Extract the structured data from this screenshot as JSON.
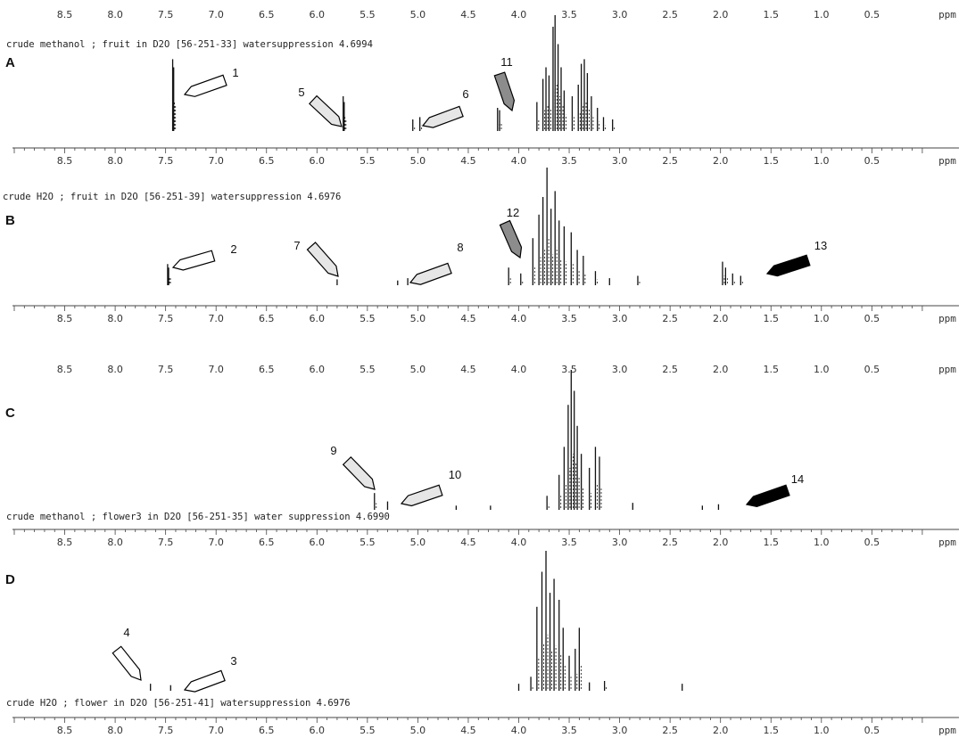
{
  "chart_data": [
    {
      "type": "line",
      "panel": "A",
      "caption": "crude methanol ; fruit in D2O [56-251-33] watersuppression 4.6994",
      "x_unit": "ppm",
      "x_ticks": [
        "8.5",
        "8.0",
        "7.5",
        "7.0",
        "6.5",
        "6.0",
        "5.5",
        "5.0",
        "4.5",
        "4.0",
        "3.5",
        "3.0",
        "2.5",
        "2.0",
        "1.5",
        "1.0",
        "0.5"
      ],
      "xlim": [
        9.0,
        0.0
      ],
      "peaks": [
        {
          "ppm": 7.43,
          "height": 0.62
        },
        {
          "ppm": 7.42,
          "height": 0.55
        },
        {
          "ppm": 5.74,
          "height": 0.3
        },
        {
          "ppm": 5.73,
          "height": 0.25
        },
        {
          "ppm": 5.05,
          "height": 0.1
        },
        {
          "ppm": 4.98,
          "height": 0.12
        },
        {
          "ppm": 4.21,
          "height": 0.2
        },
        {
          "ppm": 4.19,
          "height": 0.18
        },
        {
          "ppm": 3.82,
          "height": 0.25
        },
        {
          "ppm": 3.76,
          "height": 0.45
        },
        {
          "ppm": 3.73,
          "height": 0.55
        },
        {
          "ppm": 3.7,
          "height": 0.48
        },
        {
          "ppm": 3.66,
          "height": 0.9
        },
        {
          "ppm": 3.64,
          "height": 1.0
        },
        {
          "ppm": 3.61,
          "height": 0.75
        },
        {
          "ppm": 3.58,
          "height": 0.55
        },
        {
          "ppm": 3.55,
          "height": 0.35
        },
        {
          "ppm": 3.47,
          "height": 0.3
        },
        {
          "ppm": 3.41,
          "height": 0.4
        },
        {
          "ppm": 3.38,
          "height": 0.58
        },
        {
          "ppm": 3.35,
          "height": 0.62
        },
        {
          "ppm": 3.32,
          "height": 0.5
        },
        {
          "ppm": 3.28,
          "height": 0.3
        },
        {
          "ppm": 3.22,
          "height": 0.2
        },
        {
          "ppm": 3.16,
          "height": 0.12
        },
        {
          "ppm": 3.07,
          "height": 0.1
        }
      ],
      "annotations": [
        {
          "label": "1",
          "style": "white",
          "tip_ppm": 7.32
        },
        {
          "label": "5",
          "style": "light",
          "tip_ppm": 5.85
        },
        {
          "label": "6",
          "style": "light",
          "tip_ppm": 4.98
        },
        {
          "label": "11",
          "style": "dark",
          "tip_ppm": 4.2
        }
      ]
    },
    {
      "type": "line",
      "panel": "B",
      "caption": "crude H2O ; fruit in D2O [56-251-39]  watersuppression 4.6976",
      "x_unit": "ppm",
      "x_ticks": [
        "8.5",
        "8.0",
        "7.5",
        "7.0",
        "6.5",
        "6.0",
        "5.5",
        "5.0",
        "4.5",
        "4.0",
        "3.5",
        "3.0",
        "2.5",
        "2.0",
        "1.5",
        "1.0",
        "0.5"
      ],
      "xlim": [
        9.0,
        0.0
      ],
      "peaks": [
        {
          "ppm": 7.48,
          "height": 0.18
        },
        {
          "ppm": 7.47,
          "height": 0.15
        },
        {
          "ppm": 5.8,
          "height": 0.05
        },
        {
          "ppm": 5.2,
          "height": 0.04
        },
        {
          "ppm": 5.1,
          "height": 0.06
        },
        {
          "ppm": 4.1,
          "height": 0.15
        },
        {
          "ppm": 3.98,
          "height": 0.1
        },
        {
          "ppm": 3.86,
          "height": 0.4
        },
        {
          "ppm": 3.8,
          "height": 0.6
        },
        {
          "ppm": 3.76,
          "height": 0.75
        },
        {
          "ppm": 3.72,
          "height": 1.0
        },
        {
          "ppm": 3.68,
          "height": 0.65
        },
        {
          "ppm": 3.64,
          "height": 0.8
        },
        {
          "ppm": 3.6,
          "height": 0.55
        },
        {
          "ppm": 3.55,
          "height": 0.5
        },
        {
          "ppm": 3.48,
          "height": 0.45
        },
        {
          "ppm": 3.42,
          "height": 0.3
        },
        {
          "ppm": 3.36,
          "height": 0.25
        },
        {
          "ppm": 3.24,
          "height": 0.12
        },
        {
          "ppm": 3.1,
          "height": 0.06
        },
        {
          "ppm": 2.82,
          "height": 0.08
        },
        {
          "ppm": 1.98,
          "height": 0.2
        },
        {
          "ppm": 1.95,
          "height": 0.15
        },
        {
          "ppm": 1.88,
          "height": 0.1
        },
        {
          "ppm": 1.8,
          "height": 0.08
        }
      ],
      "annotations": [
        {
          "label": "2",
          "style": "white",
          "tip_ppm": 7.45
        },
        {
          "label": "7",
          "style": "light",
          "tip_ppm": 5.85
        },
        {
          "label": "8",
          "style": "light",
          "tip_ppm": 5.1
        },
        {
          "label": "12",
          "style": "dark",
          "tip_ppm": 4.1
        },
        {
          "label": "13",
          "style": "black",
          "tip_ppm": 1.65
        }
      ]
    },
    {
      "type": "line",
      "panel": "C",
      "caption": "crude methanol ; flower3 in D2O [56-251-35] water suppression 4.6990",
      "x_unit": "ppm",
      "x_ticks": [
        "8.5",
        "8.0",
        "7.5",
        "7.0",
        "6.5",
        "6.0",
        "5.5",
        "5.0",
        "4.5",
        "4.0",
        "3.5",
        "3.0",
        "2.5",
        "2.0",
        "1.5",
        "1.0",
        "0.5"
      ],
      "xlim": [
        9.0,
        0.0
      ],
      "peaks": [
        {
          "ppm": 5.43,
          "height": 0.12
        },
        {
          "ppm": 5.3,
          "height": 0.06
        },
        {
          "ppm": 4.62,
          "height": 0.03
        },
        {
          "ppm": 4.28,
          "height": 0.03
        },
        {
          "ppm": 3.72,
          "height": 0.1
        },
        {
          "ppm": 3.6,
          "height": 0.25
        },
        {
          "ppm": 3.55,
          "height": 0.45
        },
        {
          "ppm": 3.51,
          "height": 0.75
        },
        {
          "ppm": 3.48,
          "height": 1.0
        },
        {
          "ppm": 3.45,
          "height": 0.85
        },
        {
          "ppm": 3.42,
          "height": 0.6
        },
        {
          "ppm": 3.38,
          "height": 0.4
        },
        {
          "ppm": 3.3,
          "height": 0.3
        },
        {
          "ppm": 3.24,
          "height": 0.45
        },
        {
          "ppm": 3.2,
          "height": 0.38
        },
        {
          "ppm": 2.87,
          "height": 0.05
        },
        {
          "ppm": 2.18,
          "height": 0.03
        },
        {
          "ppm": 2.02,
          "height": 0.04
        }
      ],
      "annotations": [
        {
          "label": "9",
          "style": "light",
          "tip_ppm": 5.5
        },
        {
          "label": "10",
          "style": "light",
          "tip_ppm": 5.2
        },
        {
          "label": "14",
          "style": "black",
          "tip_ppm": 1.85
        }
      ]
    },
    {
      "type": "line",
      "panel": "D",
      "caption": "crude H2O ; flower in D2O [56-251-41]  watersuppression 4.6976",
      "x_unit": "ppm",
      "x_ticks": [
        "8.5",
        "8.0",
        "7.5",
        "7.0",
        "6.5",
        "6.0",
        "5.5",
        "5.0",
        "4.5",
        "4.0",
        "3.5",
        "3.0",
        "2.5",
        "2.0",
        "1.5",
        "1.0",
        "0.5"
      ],
      "xlim": [
        9.0,
        0.0
      ],
      "peaks": [
        {
          "ppm": 7.65,
          "height": 0.05
        },
        {
          "ppm": 7.45,
          "height": 0.04
        },
        {
          "ppm": 4.0,
          "height": 0.05
        },
        {
          "ppm": 3.88,
          "height": 0.1
        },
        {
          "ppm": 3.82,
          "height": 0.6
        },
        {
          "ppm": 3.77,
          "height": 0.85
        },
        {
          "ppm": 3.73,
          "height": 1.0
        },
        {
          "ppm": 3.69,
          "height": 0.7
        },
        {
          "ppm": 3.65,
          "height": 0.8
        },
        {
          "ppm": 3.6,
          "height": 0.65
        },
        {
          "ppm": 3.56,
          "height": 0.45
        },
        {
          "ppm": 3.5,
          "height": 0.25
        },
        {
          "ppm": 3.44,
          "height": 0.3
        },
        {
          "ppm": 3.4,
          "height": 0.45
        },
        {
          "ppm": 3.3,
          "height": 0.06
        },
        {
          "ppm": 3.15,
          "height": 0.07
        },
        {
          "ppm": 2.38,
          "height": 0.05
        }
      ],
      "annotations": [
        {
          "label": "4",
          "style": "white",
          "tip_ppm": 7.75
        },
        {
          "label": "3",
          "style": "white",
          "tip_ppm": 7.32
        }
      ]
    }
  ],
  "colors": {
    "white_arrow": "#ffffff",
    "light_arrow": "#e6e6e6",
    "dark_arrow": "#8c8c8c",
    "black_arrow": "#000000",
    "spectrum": "#111111",
    "axis": "#444444"
  }
}
